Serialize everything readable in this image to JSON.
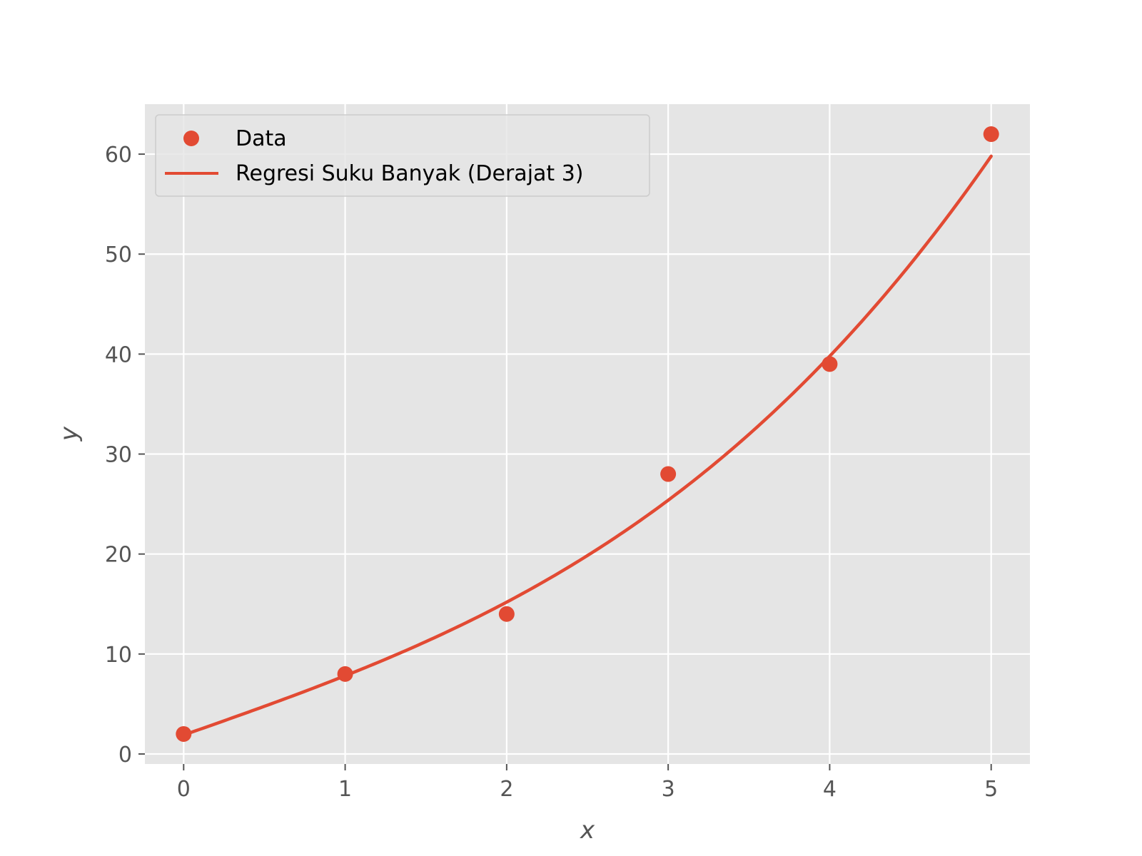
{
  "chart_data": {
    "type": "scatter",
    "title": "",
    "xlabel": "x",
    "ylabel": "y",
    "xlim": [
      -0.24,
      5.24
    ],
    "ylim": [
      -1.0,
      65.0
    ],
    "xticks": [
      0,
      1,
      2,
      3,
      4,
      5
    ],
    "yticks": [
      0,
      10,
      20,
      30,
      40,
      50,
      60
    ],
    "grid": true,
    "legend_position": "top-left",
    "colors": {
      "accent": "#E24A33",
      "plot_background": "#E5E5E5",
      "grid": "#FFFFFF",
      "tick_text": "#555555"
    },
    "series": [
      {
        "name": "Data",
        "kind": "scatter",
        "x": [
          0,
          1,
          2,
          3,
          4,
          5
        ],
        "y": [
          2,
          8,
          14,
          28,
          39,
          62
        ]
      },
      {
        "name": "Regresi Suku Banyak (Derajat 3)",
        "kind": "line",
        "coefficients": [
          1.8968,
          5.6733,
          0.0238,
          0.2315
        ]
      }
    ]
  }
}
